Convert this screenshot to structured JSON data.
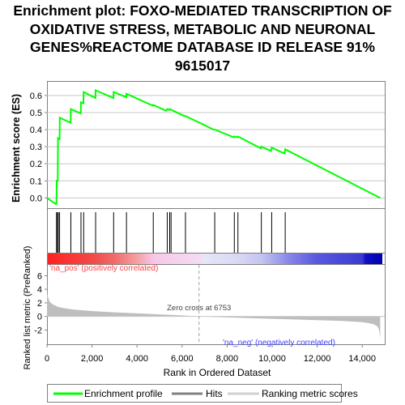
{
  "title_lines": [
    "Enrichment plot: FOXO-MEDIATED TRANSCRIPTION OF",
    "OXIDATIVE STRESS, METABOLIC AND NEURONAL",
    "GENES%REACTOME DATABASE ID RELEASE 91%",
    "9615017"
  ],
  "colors": {
    "enrichment": "#00ff00",
    "hits": "#000000",
    "ranking": "#bebebe",
    "pos_label": "#ff4040",
    "neg_label": "#4040ff",
    "frame": "#808080"
  },
  "chart_data": {
    "type": "line",
    "x_range": [
      0,
      15000
    ],
    "x_ticks": [
      0,
      2000,
      4000,
      6000,
      8000,
      10000,
      12000,
      14000
    ],
    "x_tick_labels": [
      "0",
      "2,000",
      "4,000",
      "6,000",
      "8,000",
      "10,000",
      "12,000",
      "14,000"
    ],
    "xlabel": "Rank in Ordered Dataset",
    "es_panel": {
      "ylabel": "Enrichment score (ES)",
      "ylim": [
        -0.06,
        0.68
      ],
      "y_ticks": [
        0.0,
        0.1,
        0.2,
        0.3,
        0.4,
        0.5,
        0.6
      ],
      "y_tick_labels": [
        "0.0",
        "0.1",
        "0.2",
        "0.3",
        "0.4",
        "0.5",
        "0.6"
      ],
      "series": [
        {
          "name": "Enrichment profile",
          "x": [
            0,
            380,
            420,
            430,
            480,
            490,
            560,
            570,
            1050,
            1060,
            1500,
            1510,
            1620,
            1630,
            2150,
            2160,
            2950,
            2960,
            3520,
            3530,
            4700,
            4720,
            5300,
            5340,
            5430,
            5450,
            6100,
            6150,
            7400,
            7450,
            8300,
            8320,
            8450,
            8480,
            9500,
            9520,
            9950,
            9980,
            10550,
            10580,
            14800
          ],
          "y": [
            0.0,
            -0.035,
            -0.035,
            0.1,
            0.1,
            0.35,
            0.345,
            0.47,
            0.44,
            0.52,
            0.495,
            0.56,
            0.555,
            0.62,
            0.585,
            0.63,
            0.585,
            0.62,
            0.59,
            0.61,
            0.54,
            0.545,
            0.51,
            0.52,
            0.515,
            0.52,
            0.48,
            0.48,
            0.4,
            0.4,
            0.355,
            0.36,
            0.355,
            0.36,
            0.29,
            0.3,
            0.275,
            0.295,
            0.26,
            0.285,
            0.0
          ]
        }
      ]
    },
    "hits": [
      420,
      470,
      500,
      560,
      1060,
      1510,
      1630,
      2160,
      2960,
      3530,
      4720,
      5340,
      5450,
      5510,
      6150,
      7450,
      8320,
      8480,
      9520,
      9980,
      10580
    ],
    "ranking_panel": {
      "ylabel": "Ranked list metric (PreRanked)",
      "ylim": [
        -4.1,
        7.6
      ],
      "y_ticks": [
        -2,
        0,
        2,
        4,
        6
      ],
      "y_tick_labels": [
        "-2",
        "0",
        "2",
        "4",
        "6"
      ],
      "zero_cross": 6753,
      "zero_cross_label": "Zero cross at 6753",
      "pos_label": "'na_pos' (positively correlated)",
      "neg_label": "'na_neg' (negatively correlated)",
      "series": [
        {
          "name": "Ranking metric scores",
          "x": [
            0,
            10,
            50,
            100,
            200,
            300,
            500,
            800,
            1200,
            2000,
            3000,
            4000,
            5000,
            6000,
            6753,
            8000,
            9000,
            10000,
            11000,
            12000,
            13000,
            13500,
            14000,
            14300,
            14500,
            14650,
            14720,
            14760,
            14790,
            14800
          ],
          "y": [
            6.0,
            3.5,
            2.8,
            2.3,
            1.9,
            1.7,
            1.4,
            1.2,
            1.0,
            0.8,
            0.6,
            0.45,
            0.3,
            0.15,
            0.0,
            -0.15,
            -0.25,
            -0.35,
            -0.45,
            -0.55,
            -0.65,
            -0.75,
            -0.85,
            -1.0,
            -1.15,
            -1.4,
            -1.7,
            -2.2,
            -3.0,
            -3.5
          ]
        }
      ]
    },
    "legend": {
      "placement": "bottom",
      "entries": [
        "Enrichment profile",
        "Hits",
        "Ranking metric scores"
      ]
    }
  }
}
